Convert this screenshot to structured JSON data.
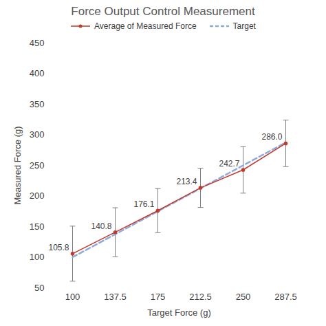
{
  "chart_data": {
    "type": "line",
    "title": "Force Output Control Measurement",
    "x_label": "Target Force (g)",
    "y_label": "Measured Force (g)",
    "categories": [
      "100",
      "137.5",
      "175",
      "212.5",
      "250",
      "287.5"
    ],
    "series": [
      {
        "name": "Average of Measured Force",
        "color": "#c0392b",
        "marker": "circle",
        "line_style": "solid",
        "values": [
          105.8,
          140.8,
          176.1,
          213.4,
          242.7,
          286.0
        ],
        "value_labels": [
          "105.8",
          "140.8",
          "176.1",
          "213.4",
          "242.7",
          "286.0"
        ],
        "errors": [
          45,
          40,
          36,
          32,
          38,
          38
        ],
        "data_labels": true
      },
      {
        "name": "Target",
        "color": "#8eaadb",
        "line_style": "dashed",
        "values": [
          100,
          137.5,
          175,
          212.5,
          250,
          287.5
        ]
      }
    ],
    "ylim": [
      50,
      450
    ],
    "yticks": [
      50,
      100,
      150,
      200,
      250,
      300,
      350,
      400,
      450
    ],
    "grid": false,
    "legend": "top"
  }
}
